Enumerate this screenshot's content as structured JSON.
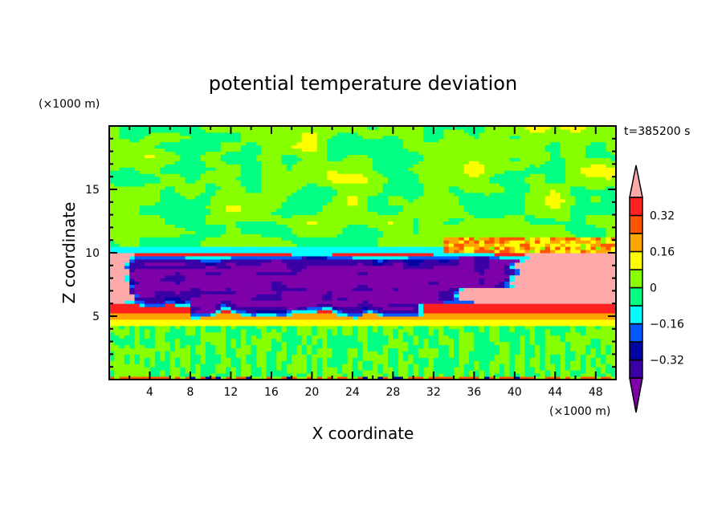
{
  "chart_data": {
    "type": "heatmap",
    "title": "potential temperature deviation",
    "xlabel": "X coordinate",
    "ylabel": "Z coordinate",
    "x_unit": "(×1000 m)",
    "y_unit": "(×1000 m)",
    "time_label": "t=385200 s",
    "xlim": [
      0,
      50
    ],
    "ylim": [
      0,
      20
    ],
    "x_ticks": [
      4,
      8,
      12,
      16,
      20,
      24,
      28,
      32,
      36,
      40,
      44,
      48
    ],
    "y_ticks": [
      5,
      10,
      15
    ],
    "colorbar": {
      "levels": [
        -0.4,
        -0.32,
        -0.24,
        -0.16,
        -0.08,
        0,
        0.08,
        0.16,
        0.24,
        0.32,
        0.4
      ],
      "tick_labels": [
        "0.32",
        "0.16",
        "0",
        "−0.16",
        "−0.32"
      ],
      "tick_values": [
        0.32,
        0.16,
        0,
        -0.16,
        -0.32
      ],
      "colors": [
        "#7d00a8",
        "#3a00a5",
        "#0005a3",
        "#005aff",
        "#00ffff",
        "#00ff82",
        "#88ff00",
        "#ffff00",
        "#ffa500",
        "#ff5500",
        "#ff2020",
        "#ffaaaa"
      ]
    },
    "field_summary": {
      "cold_pool": {
        "x_range": [
          1,
          40
        ],
        "z_range": [
          4.8,
          10
        ],
        "value": "< -0.32"
      },
      "warm_layer": {
        "z_range": [
          4.3,
          6
        ],
        "value": "0.08 to 0.40"
      },
      "warm_region_right": {
        "x_range": [
          36,
          50
        ],
        "z_range": [
          6,
          10
        ],
        "value": "> 0.40"
      },
      "boundary_layer": {
        "z_range": [
          0.3,
          4.3
        ],
        "value": "-0.08 to 0.08"
      },
      "upper_troposphere": {
        "z_range": [
          10,
          20
        ],
        "value": "-0.16 to 0.16"
      }
    }
  }
}
